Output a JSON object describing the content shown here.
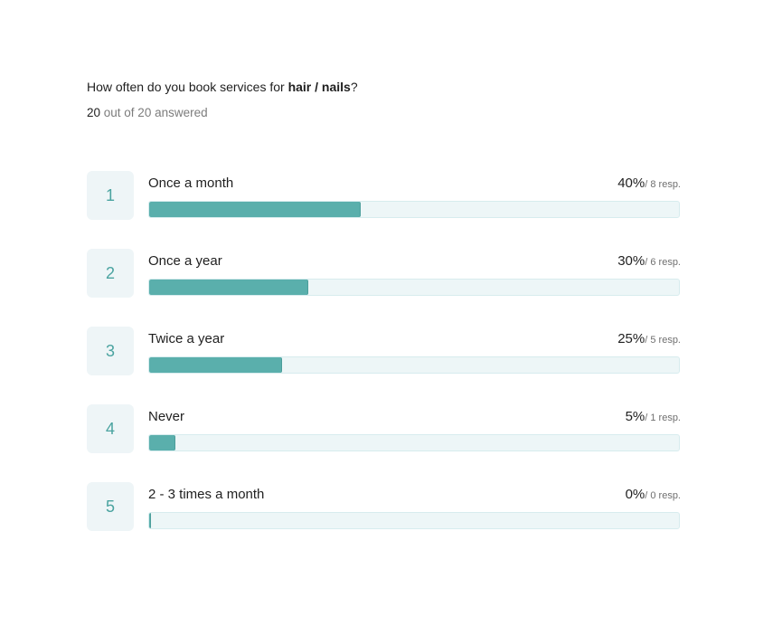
{
  "question": {
    "prefix": "How often do you book services for ",
    "emphasis": "hair / nails",
    "suffix": "?"
  },
  "answered": {
    "count": "20",
    "text": " out of 20 answered"
  },
  "colors": {
    "bar_fill": "#5aafac",
    "bar_track": "#edf6f7",
    "badge_bg": "#eef5f7",
    "badge_text": "#4aa3a0"
  },
  "chart_data": {
    "type": "bar",
    "orientation": "horizontal",
    "categories": [
      "Once a month",
      "Once a year",
      "Twice a year",
      "Never",
      "2 - 3 times a month"
    ],
    "ranks": [
      "1",
      "2",
      "3",
      "4",
      "5"
    ],
    "values": [
      40,
      30,
      25,
      5,
      0
    ],
    "value_labels": [
      "40%",
      "30%",
      "25%",
      "5%",
      "0%"
    ],
    "responses": [
      8,
      6,
      5,
      1,
      0
    ],
    "response_labels": [
      "/ 8 resp.",
      "/ 6 resp.",
      "/ 5 resp.",
      "/ 1 resp.",
      "/ 0 resp."
    ],
    "xlim": [
      0,
      100
    ],
    "grid": false,
    "legend": "none"
  }
}
